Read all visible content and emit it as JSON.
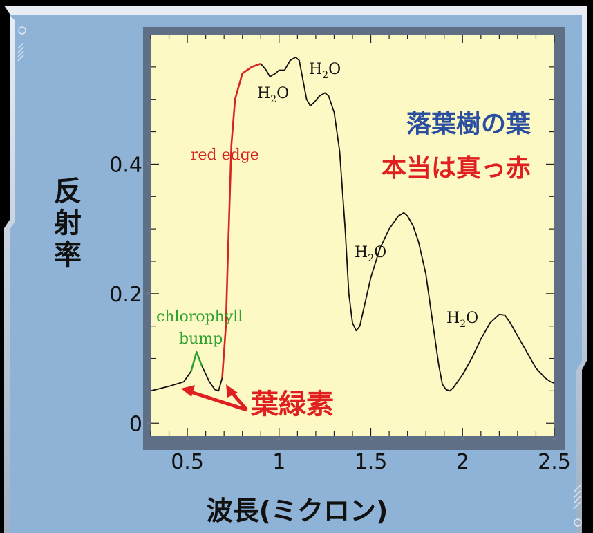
{
  "colors": {
    "panel": "#8fb3d6",
    "plot_bg": "#fdf9c4",
    "curve": "#111111",
    "red_edge": "#d8231f",
    "chlorophyll": "#2ea02e",
    "blue_text": "#2b4fa0",
    "red_text": "#e02020"
  },
  "chart_data": {
    "type": "line",
    "title": "",
    "xlabel": "波長(ミクロン)",
    "ylabel": "反射率",
    "xlim": [
      0.3,
      2.5
    ],
    "ylim": [
      -0.02,
      0.6
    ],
    "xticks": [
      0.5,
      1,
      1.5,
      2,
      2.5
    ],
    "xtick_labels": [
      "0.5",
      "1",
      "1.5",
      "2",
      "2.5"
    ],
    "yticks": [
      0,
      0.2,
      0.4
    ],
    "ytick_labels": [
      "0",
      "0.2",
      "0.4"
    ],
    "grid": false,
    "series": [
      {
        "x": [
          0.3,
          0.4,
          0.48,
          0.52,
          0.55,
          0.58,
          0.62,
          0.65,
          0.67,
          0.69,
          0.71,
          0.72,
          0.74,
          0.76,
          0.8,
          0.85,
          0.9,
          0.93,
          0.95,
          0.98,
          1.0,
          1.03,
          1.06,
          1.09,
          1.11,
          1.13,
          1.15,
          1.17,
          1.19,
          1.22,
          1.25,
          1.27,
          1.3,
          1.33,
          1.36,
          1.38,
          1.4,
          1.42,
          1.44,
          1.46,
          1.5,
          1.55,
          1.6,
          1.65,
          1.68,
          1.7,
          1.73,
          1.76,
          1.8,
          1.84,
          1.87,
          1.89,
          1.91,
          1.93,
          1.95,
          2.0,
          2.05,
          2.1,
          2.15,
          2.2,
          2.23,
          2.26,
          2.3,
          2.35,
          2.4,
          2.45,
          2.48,
          2.5
        ],
        "y": [
          0.05,
          0.057,
          0.064,
          0.08,
          0.11,
          0.088,
          0.064,
          0.052,
          0.05,
          0.07,
          0.15,
          0.25,
          0.43,
          0.5,
          0.54,
          0.55,
          0.555,
          0.545,
          0.535,
          0.54,
          0.545,
          0.545,
          0.56,
          0.565,
          0.56,
          0.53,
          0.5,
          0.49,
          0.495,
          0.505,
          0.51,
          0.505,
          0.48,
          0.42,
          0.3,
          0.2,
          0.155,
          0.143,
          0.15,
          0.175,
          0.225,
          0.27,
          0.3,
          0.32,
          0.325,
          0.32,
          0.305,
          0.28,
          0.23,
          0.15,
          0.09,
          0.06,
          0.052,
          0.05,
          0.055,
          0.075,
          0.1,
          0.13,
          0.155,
          0.168,
          0.167,
          0.155,
          0.135,
          0.11,
          0.085,
          0.07,
          0.064,
          0.062
        ]
      }
    ],
    "red_edge_range": [
      0.68,
      0.9
    ],
    "chlorophyll_range": [
      0.5,
      0.6
    ],
    "annotations": {
      "h2o_label": "H",
      "h2o_sub": "2",
      "h2o_tail": "O",
      "red_edge": "red edge",
      "chlorophyll_line1": "chlorophyll",
      "chlorophyll_line2": "bump",
      "note_line1": "落葉樹の葉",
      "note_line2": "本当は真っ赤",
      "pigment": "葉緑素"
    }
  }
}
